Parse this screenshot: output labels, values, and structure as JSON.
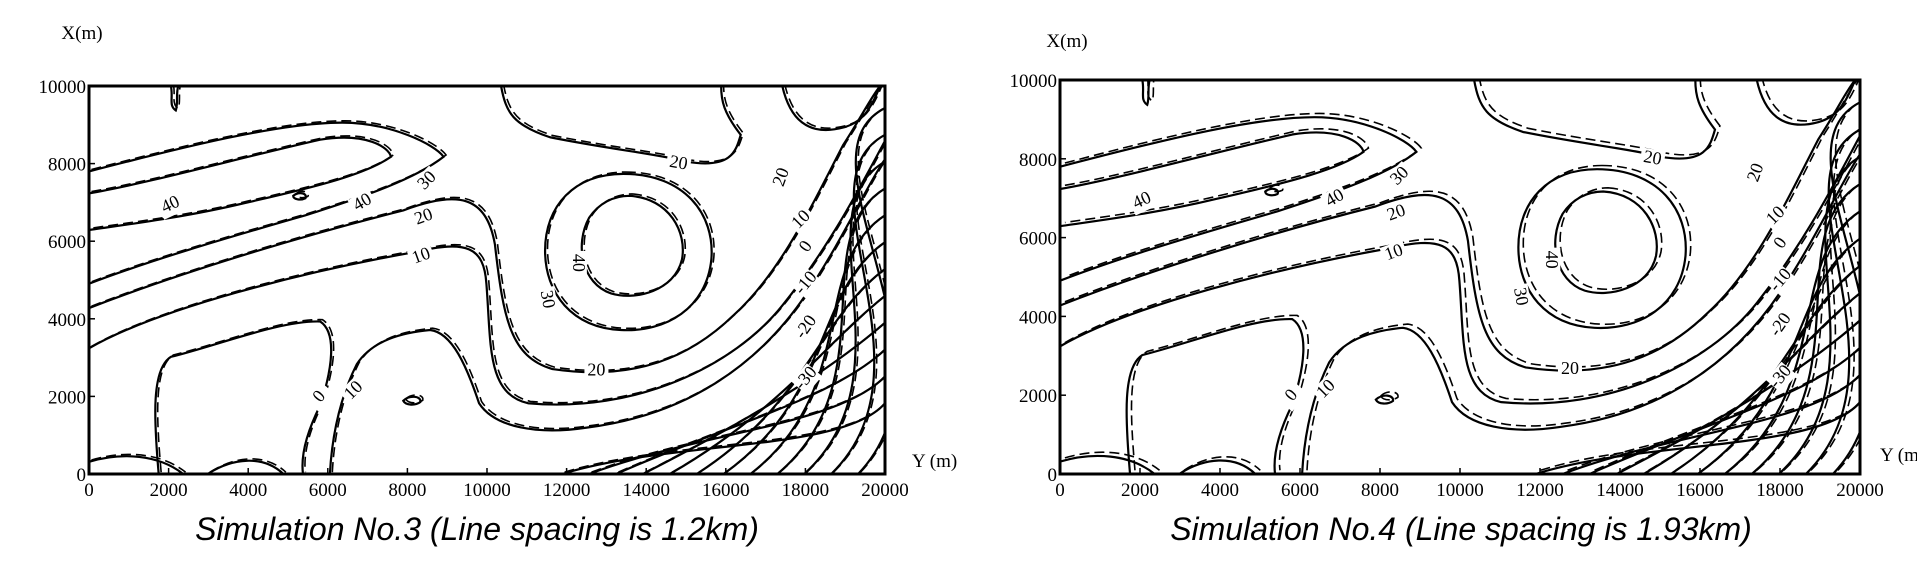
{
  "chart_data": [
    {
      "type": "contour",
      "title": "Simulation No.3 (Line spacing is 1.2km)",
      "x_label": "Y (m)",
      "y_label": "X(m)",
      "xlim": [
        0,
        20000
      ],
      "ylim": [
        0,
        10000
      ],
      "xticks": [
        0,
        2000,
        4000,
        6000,
        8000,
        10000,
        12000,
        14000,
        16000,
        18000,
        20000
      ],
      "yticks": [
        0,
        2000,
        4000,
        6000,
        8000,
        10000
      ],
      "contour_labels": [
        40,
        40,
        30,
        20,
        10,
        20,
        40,
        30,
        20,
        0,
        10,
        20,
        10,
        0,
        -10,
        -20,
        -30
      ]
    },
    {
      "type": "contour",
      "title": "Simulation No.4 (Line spacing is 1.93km)",
      "x_label": "Y (m)",
      "y_label": "X(m)",
      "xlim": [
        0,
        20000
      ],
      "ylim": [
        0,
        10000
      ],
      "xticks": [
        0,
        2000,
        4000,
        6000,
        8000,
        10000,
        12000,
        14000,
        16000,
        18000,
        20000
      ],
      "yticks": [
        0,
        2000,
        4000,
        6000,
        8000,
        10000
      ],
      "contour_labels": [
        40,
        40,
        30,
        20,
        10,
        20,
        40,
        30,
        20,
        0,
        10,
        20,
        10,
        0,
        -10,
        -20,
        -30
      ]
    }
  ]
}
